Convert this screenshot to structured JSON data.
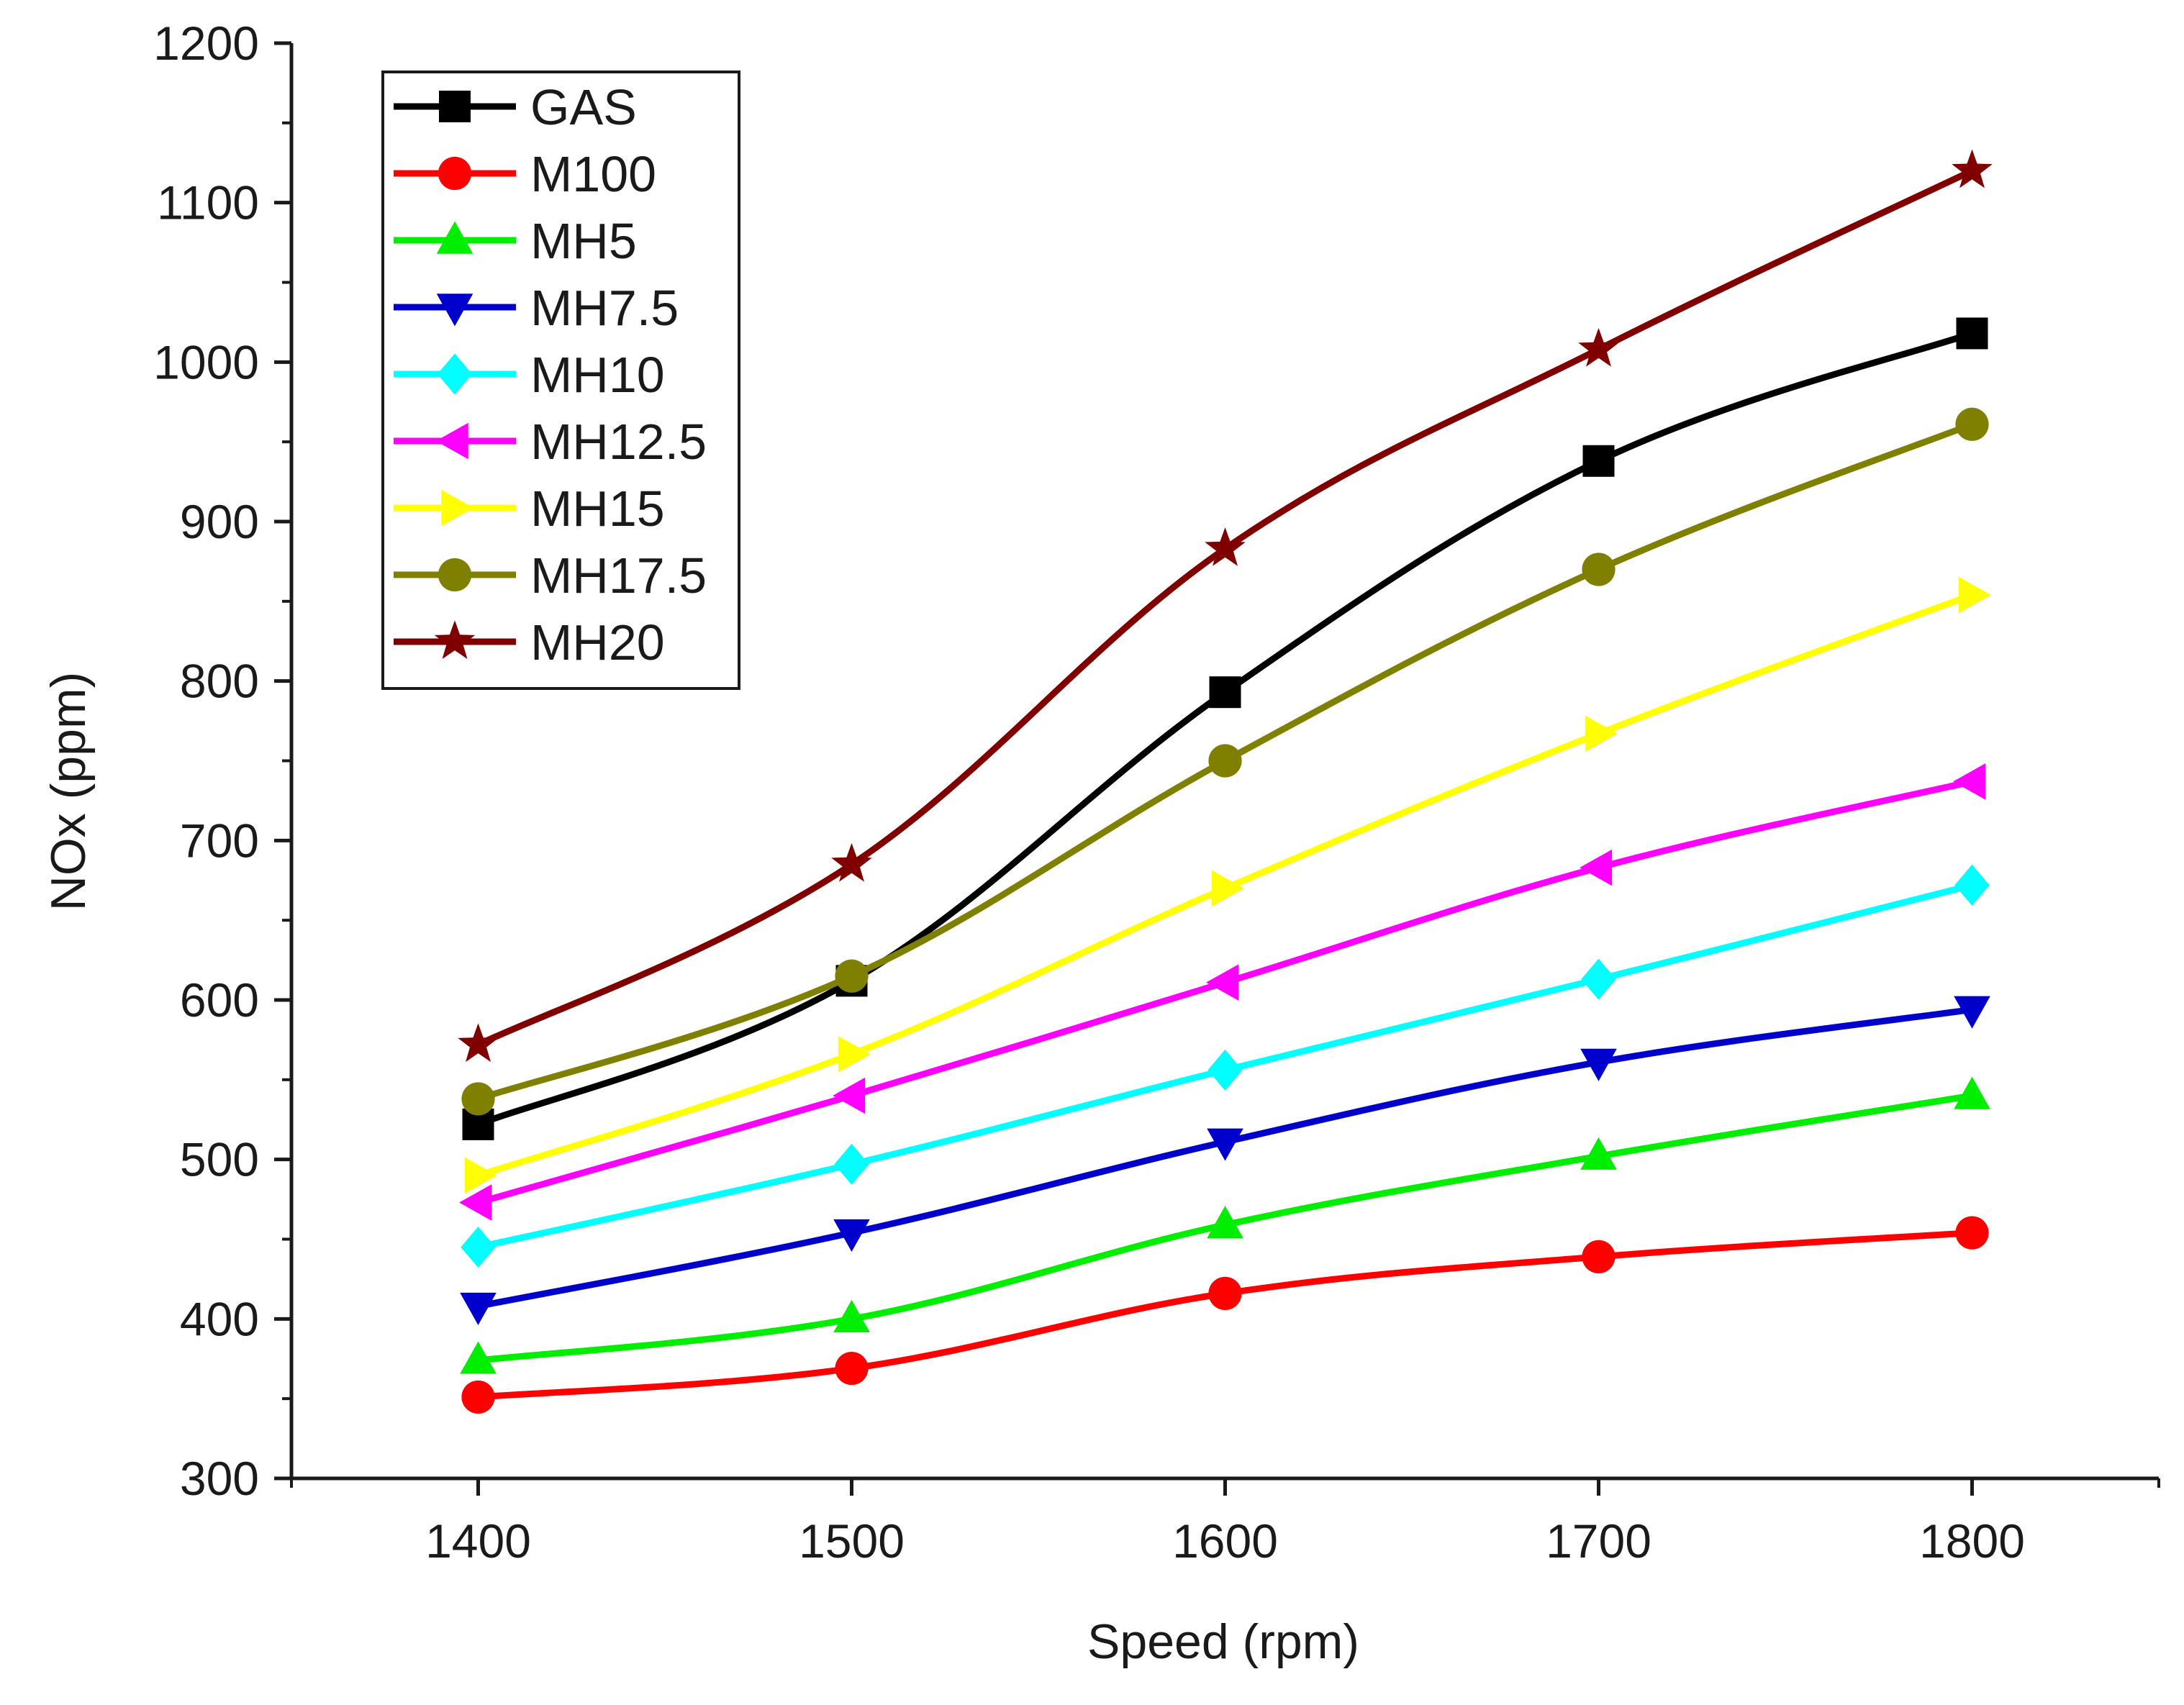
{
  "chart_data": {
    "type": "line",
    "title": "",
    "xlabel": "Speed (rpm)",
    "ylabel": "NOx (ppm)",
    "xlim": [
      1350,
      1850
    ],
    "ylim": [
      300,
      1200
    ],
    "x": [
      1400,
      1500,
      1600,
      1700,
      1800
    ],
    "x_ticks": [
      "1400",
      "1500",
      "1600",
      "1700",
      "1800"
    ],
    "y_ticks": [
      "300",
      "400",
      "500",
      "600",
      "700",
      "800",
      "900",
      "1000",
      "1100",
      "1200"
    ],
    "grid": false,
    "legend_position": "top-left",
    "series": [
      {
        "name": "GAS",
        "color": "#000000",
        "marker": "square",
        "values": [
          522,
          612,
          793,
          938,
          1018
        ]
      },
      {
        "name": "M100",
        "color": "#ff0000",
        "marker": "circle",
        "values": [
          351,
          369,
          416,
          439,
          454
        ]
      },
      {
        "name": "MH5",
        "color": "#00ee00",
        "marker": "triangle-up",
        "values": [
          374,
          400,
          459,
          502,
          540
        ]
      },
      {
        "name": "MH7.5",
        "color": "#0000cc",
        "marker": "triangle-down",
        "values": [
          408,
          454,
          511,
          561,
          594
        ]
      },
      {
        "name": "MH10",
        "color": "#00ffff",
        "marker": "diamond",
        "values": [
          445,
          497,
          556,
          613,
          672
        ]
      },
      {
        "name": "MH12.5",
        "color": "#ff00ff",
        "marker": "triangle-left",
        "values": [
          473,
          540,
          611,
          683,
          737
        ]
      },
      {
        "name": "MH15",
        "color": "#ffff00",
        "marker": "triangle-right",
        "values": [
          490,
          566,
          670,
          767,
          854
        ]
      },
      {
        "name": "MH17.5",
        "color": "#808000",
        "marker": "circle",
        "values": [
          538,
          615,
          750,
          870,
          961
        ]
      },
      {
        "name": "MH20",
        "color": "#800000",
        "marker": "star",
        "values": [
          572,
          685,
          883,
          1008,
          1120
        ]
      }
    ]
  }
}
